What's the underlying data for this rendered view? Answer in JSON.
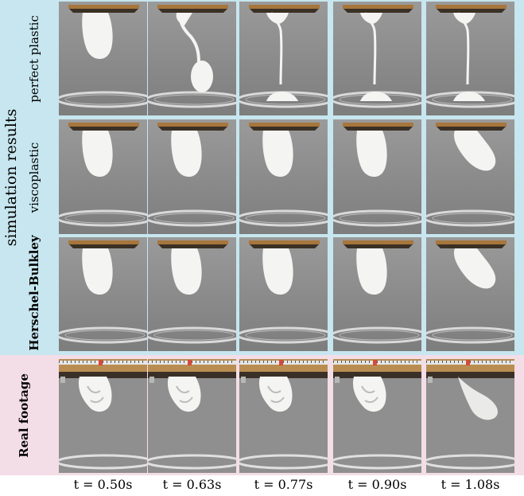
{
  "figure": {
    "section_label": "simulation results",
    "rows": [
      {
        "label": "perfect plastic",
        "bold": false
      },
      {
        "label": "viscoplastic",
        "bold": false
      },
      {
        "label": "Herschel-Bulkley",
        "bold": true
      },
      {
        "label": "Real footage",
        "bold": true
      }
    ],
    "time_labels": [
      "t = 0.50s",
      "t = 0.63s",
      "t = 0.77s",
      "t = 0.90s",
      "t = 1.08s"
    ],
    "colors": {
      "sim_background": "#c7e6ef",
      "real_background": "#f3dde6",
      "scene_wall": "#8c8c8c",
      "wood": "#a7763c",
      "material": "#f4f4f2"
    },
    "frames": [
      [
        "blob-hanging",
        "thread-falling-drop",
        "thread-landed",
        "thread-landed",
        "thread-landed"
      ],
      [
        "blob-hanging",
        "blob-hanging",
        "blob-hanging",
        "blob-hanging",
        "blob-tilted"
      ],
      [
        "blob-hanging",
        "blob-hanging",
        "blob-hanging",
        "blob-hanging",
        "blob-tilted"
      ],
      [
        "real-hanging",
        "real-hanging",
        "real-hanging",
        "real-hanging",
        "real-detaching"
      ]
    ]
  }
}
